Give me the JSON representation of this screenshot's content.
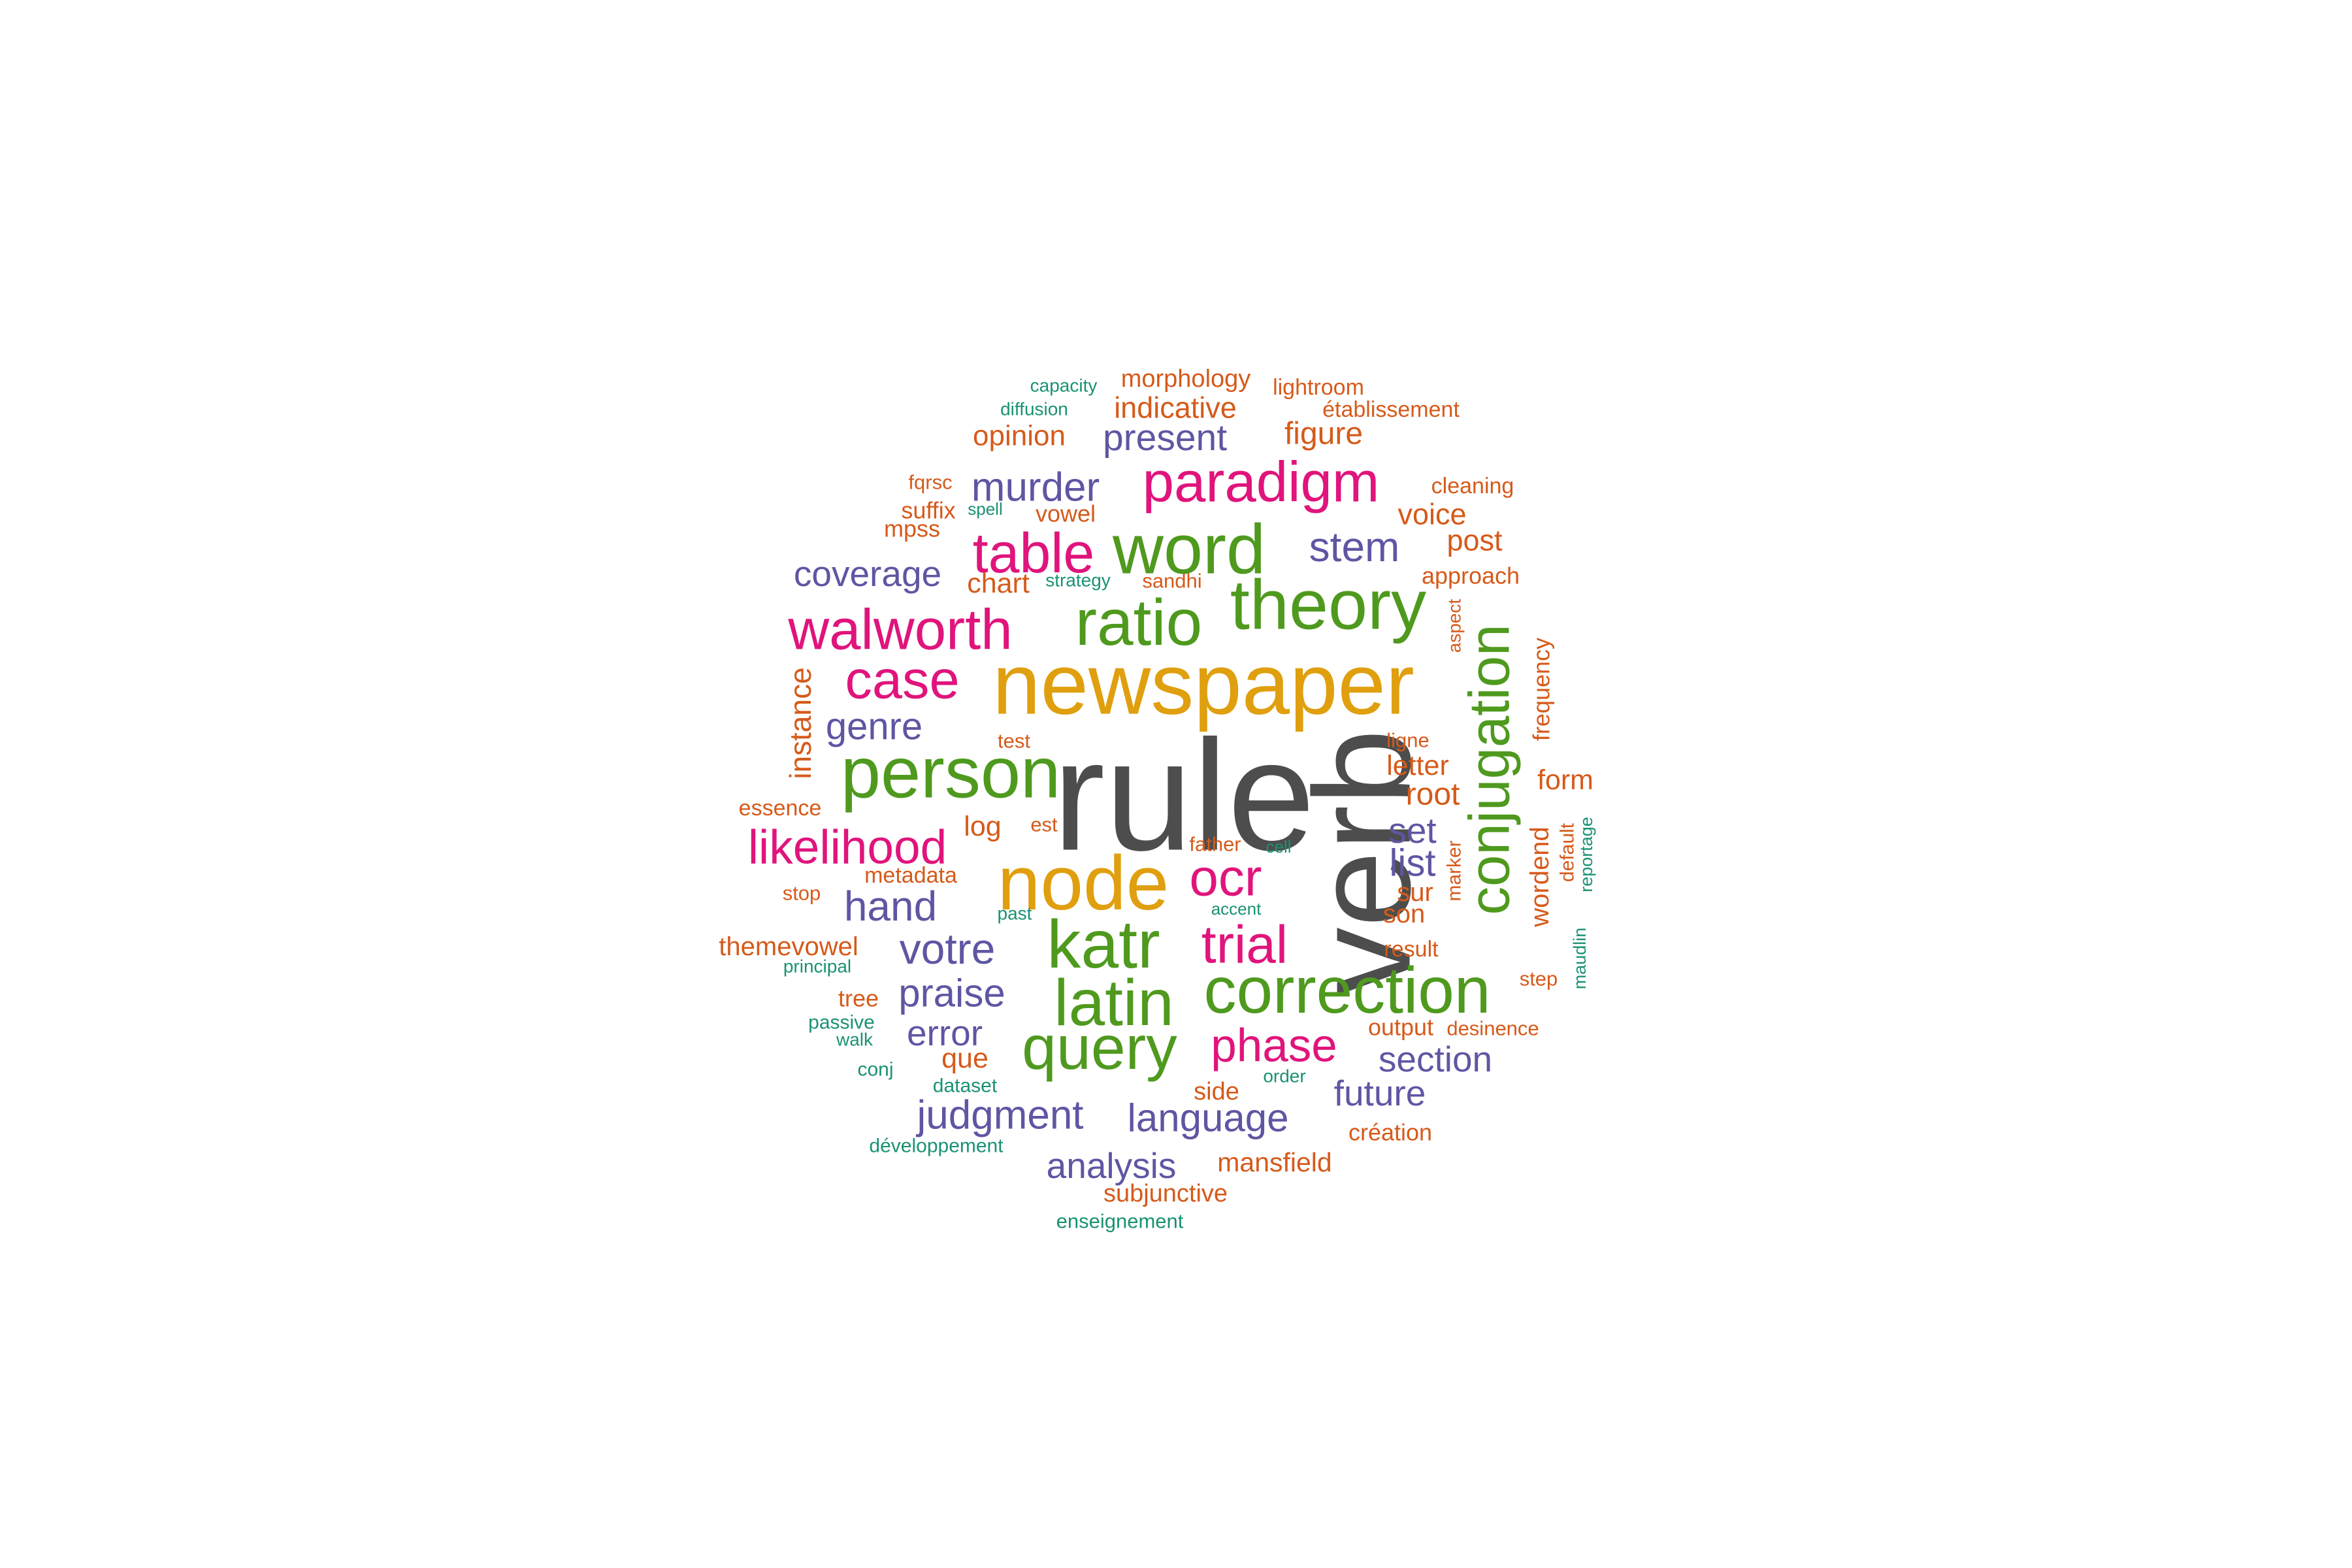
{
  "palette": {
    "gray": "#4d4d4d",
    "gold": "#e09f0e",
    "green": "#4f9a1e",
    "magenta": "#e0147c",
    "purple": "#5e56a3",
    "orange": "#d65a1a",
    "teal": "#1a9274"
  },
  "words": [
    {
      "text": "rule",
      "color": "gray",
      "rotate": false
    },
    {
      "text": "verb",
      "color": "gray",
      "rotate": true
    },
    {
      "text": "newspaper",
      "color": "gold",
      "rotate": false
    },
    {
      "text": "node",
      "color": "gold",
      "rotate": false
    },
    {
      "text": "person",
      "color": "green",
      "rotate": false
    },
    {
      "text": "theory",
      "color": "green",
      "rotate": false
    },
    {
      "text": "word",
      "color": "green",
      "rotate": false
    },
    {
      "text": "ratio",
      "color": "green",
      "rotate": false
    },
    {
      "text": "conjugation",
      "color": "green",
      "rotate": true
    },
    {
      "text": "katr",
      "color": "green",
      "rotate": false
    },
    {
      "text": "latin",
      "color": "green",
      "rotate": false
    },
    {
      "text": "correction",
      "color": "green",
      "rotate": false
    },
    {
      "text": "query",
      "color": "green",
      "rotate": false
    },
    {
      "text": "walworth",
      "color": "magenta",
      "rotate": false
    },
    {
      "text": "paradigm",
      "color": "magenta",
      "rotate": false
    },
    {
      "text": "table",
      "color": "magenta",
      "rotate": false
    },
    {
      "text": "case",
      "color": "magenta",
      "rotate": false
    },
    {
      "text": "likelihood",
      "color": "magenta",
      "rotate": false
    },
    {
      "text": "ocr",
      "color": "magenta",
      "rotate": false
    },
    {
      "text": "trial",
      "color": "magenta",
      "rotate": false
    },
    {
      "text": "phase",
      "color": "magenta",
      "rotate": false
    },
    {
      "text": "murder",
      "color": "purple",
      "rotate": false
    },
    {
      "text": "stem",
      "color": "purple",
      "rotate": false
    },
    {
      "text": "present",
      "color": "purple",
      "rotate": false
    },
    {
      "text": "coverage",
      "color": "purple",
      "rotate": false
    },
    {
      "text": "genre",
      "color": "purple",
      "rotate": false
    },
    {
      "text": "hand",
      "color": "purple",
      "rotate": false
    },
    {
      "text": "votre",
      "color": "purple",
      "rotate": false
    },
    {
      "text": "praise",
      "color": "purple",
      "rotate": false
    },
    {
      "text": "error",
      "color": "purple",
      "rotate": false
    },
    {
      "text": "judgment",
      "color": "purple",
      "rotate": false
    },
    {
      "text": "language",
      "color": "purple",
      "rotate": false
    },
    {
      "text": "analysis",
      "color": "purple",
      "rotate": false
    },
    {
      "text": "section",
      "color": "purple",
      "rotate": false
    },
    {
      "text": "future",
      "color": "purple",
      "rotate": false
    },
    {
      "text": "set",
      "color": "purple",
      "rotate": false
    },
    {
      "text": "list",
      "color": "purple",
      "rotate": false
    },
    {
      "text": "morphology",
      "color": "orange",
      "rotate": false
    },
    {
      "text": "indicative",
      "color": "orange",
      "rotate": false
    },
    {
      "text": "opinion",
      "color": "orange",
      "rotate": false
    },
    {
      "text": "figure",
      "color": "orange",
      "rotate": false
    },
    {
      "text": "lightroom",
      "color": "orange",
      "rotate": false
    },
    {
      "text": "établissement",
      "color": "orange",
      "rotate": false
    },
    {
      "text": "fqrsc",
      "color": "orange",
      "rotate": false
    },
    {
      "text": "suffix",
      "color": "orange",
      "rotate": false
    },
    {
      "text": "mpss",
      "color": "orange",
      "rotate": false
    },
    {
      "text": "vowel",
      "color": "orange",
      "rotate": false
    },
    {
      "text": "cleaning",
      "color": "orange",
      "rotate": false
    },
    {
      "text": "voice",
      "color": "orange",
      "rotate": false
    },
    {
      "text": "post",
      "color": "orange",
      "rotate": false
    },
    {
      "text": "chart",
      "color": "orange",
      "rotate": false
    },
    {
      "text": "sandhi",
      "color": "orange",
      "rotate": false
    },
    {
      "text": "approach",
      "color": "orange",
      "rotate": false
    },
    {
      "text": "aspect",
      "color": "orange",
      "rotate": true
    },
    {
      "text": "frequency",
      "color": "orange",
      "rotate": true
    },
    {
      "text": "instance",
      "color": "orange",
      "rotate": true
    },
    {
      "text": "test",
      "color": "orange",
      "rotate": false
    },
    {
      "text": "ligne",
      "color": "orange",
      "rotate": false
    },
    {
      "text": "letter",
      "color": "orange",
      "rotate": false
    },
    {
      "text": "form",
      "color": "orange",
      "rotate": false
    },
    {
      "text": "root",
      "color": "orange",
      "rotate": false
    },
    {
      "text": "essence",
      "color": "orange",
      "rotate": false
    },
    {
      "text": "log",
      "color": "orange",
      "rotate": false
    },
    {
      "text": "est",
      "color": "orange",
      "rotate": false
    },
    {
      "text": "wordend",
      "color": "orange",
      "rotate": true
    },
    {
      "text": "default",
      "color": "orange",
      "rotate": true
    },
    {
      "text": "marker",
      "color": "orange",
      "rotate": true
    },
    {
      "text": "father",
      "color": "orange",
      "rotate": false
    },
    {
      "text": "metadata",
      "color": "orange",
      "rotate": false
    },
    {
      "text": "stop",
      "color": "orange",
      "rotate": false
    },
    {
      "text": "sur",
      "color": "orange",
      "rotate": false
    },
    {
      "text": "son",
      "color": "orange",
      "rotate": false
    },
    {
      "text": "themevowel",
      "color": "orange",
      "rotate": false
    },
    {
      "text": "result",
      "color": "orange",
      "rotate": false
    },
    {
      "text": "step",
      "color": "orange",
      "rotate": false
    },
    {
      "text": "tree",
      "color": "orange",
      "rotate": false
    },
    {
      "text": "output",
      "color": "orange",
      "rotate": false
    },
    {
      "text": "desinence",
      "color": "orange",
      "rotate": false
    },
    {
      "text": "que",
      "color": "orange",
      "rotate": false
    },
    {
      "text": "side",
      "color": "orange",
      "rotate": false
    },
    {
      "text": "création",
      "color": "orange",
      "rotate": false
    },
    {
      "text": "mansfield",
      "color": "orange",
      "rotate": false
    },
    {
      "text": "subjunctive",
      "color": "orange",
      "rotate": false
    },
    {
      "text": "capacity",
      "color": "teal",
      "rotate": false
    },
    {
      "text": "diffusion",
      "color": "teal",
      "rotate": false
    },
    {
      "text": "spell",
      "color": "teal",
      "rotate": false
    },
    {
      "text": "strategy",
      "color": "teal",
      "rotate": false
    },
    {
      "text": "cell",
      "color": "teal",
      "rotate": false
    },
    {
      "text": "accent",
      "color": "teal",
      "rotate": false
    },
    {
      "text": "past",
      "color": "teal",
      "rotate": false
    },
    {
      "text": "reportage",
      "color": "teal",
      "rotate": true
    },
    {
      "text": "maudlin",
      "color": "teal",
      "rotate": true
    },
    {
      "text": "principal",
      "color": "teal",
      "rotate": false
    },
    {
      "text": "passive",
      "color": "teal",
      "rotate": false
    },
    {
      "text": "walk",
      "color": "teal",
      "rotate": false
    },
    {
      "text": "conj",
      "color": "teal",
      "rotate": false
    },
    {
      "text": "dataset",
      "color": "teal",
      "rotate": false
    },
    {
      "text": "order",
      "color": "teal",
      "rotate": false
    },
    {
      "text": "développement",
      "color": "teal",
      "rotate": false
    },
    {
      "text": "enseignement",
      "color": "teal",
      "rotate": false
    }
  ]
}
